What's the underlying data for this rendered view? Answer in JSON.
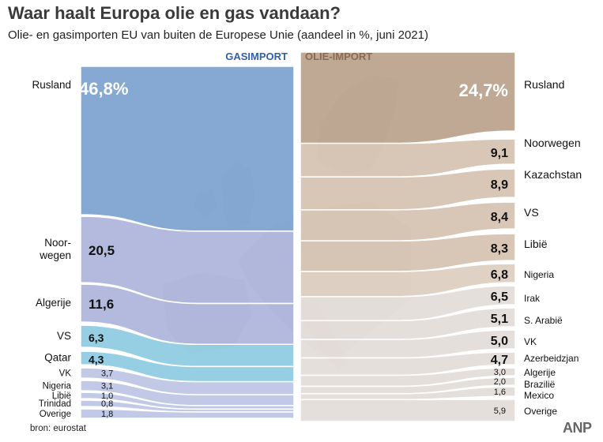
{
  "title": "Waar haalt Europa olie en gas vandaan?",
  "subtitle": "Olie- en gasimporten EU van buiten de Europese Unie (aandeel in %, juni 2021)",
  "source": "bron:  eurostat",
  "logo": "ANP",
  "colors": {
    "gas_top": "#7ba2cf",
    "gas_mid": "#a8b0d8",
    "gas_low": "#b8c2e2",
    "gas_light": "#88c8df",
    "oil_top": "#b8a08a",
    "oil_mid": "#d4c0af",
    "oil_light": "#e2dcd8",
    "gas_header": "#2f5fb0",
    "oil_header": "#8a6a50"
  },
  "chart_data": [
    {
      "type": "bar",
      "subtype": "stacked-100-percent",
      "title": "GASIMPORT",
      "unit": "%",
      "categories": [
        "Rusland",
        "Noorwegen",
        "Algerije",
        "VS",
        "Qatar",
        "VK",
        "Nigeria",
        "Libië",
        "Trinidad",
        "Overige"
      ],
      "category_labels": [
        "Rusland",
        "Noor-\nwegen",
        "Algerije",
        "VS",
        "Qatar",
        "VK",
        "Nigeria",
        "Libië",
        "Trinidad",
        "Overige"
      ],
      "values": [
        46.8,
        20.5,
        11.6,
        6.3,
        4.3,
        3.7,
        3.1,
        1.0,
        0.8,
        1.8
      ],
      "value_labels": [
        "46,8%",
        "20,5",
        "11,6",
        "6,3",
        "4,3",
        "3,7",
        "3,1",
        "1,0",
        "0,8",
        "1,8"
      ]
    },
    {
      "type": "bar",
      "subtype": "stacked-100-percent",
      "title": "OLIE-IMPORT",
      "unit": "%",
      "categories": [
        "Rusland",
        "Noorwegen",
        "Kazachstan",
        "VS",
        "Libië",
        "Nigeria",
        "Irak",
        "S. Arabië",
        "VK",
        "Azerbeidzjan",
        "Algerije",
        "Brazilië",
        "Mexico",
        "Overige"
      ],
      "values": [
        24.7,
        9.1,
        8.9,
        8.4,
        8.3,
        6.8,
        6.5,
        5.1,
        5.0,
        4.7,
        3.0,
        2.0,
        1.6,
        5.9
      ],
      "value_labels": [
        "24,7%",
        "9,1",
        "8,9",
        "8,4",
        "8,3",
        "6,8",
        "6,5",
        "5,1",
        "5,0",
        "4,7",
        "3,0",
        "2,0",
        "1,6",
        "5,9"
      ]
    }
  ]
}
